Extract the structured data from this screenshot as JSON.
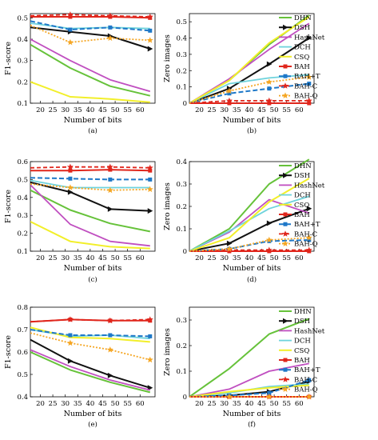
{
  "series_styles": [
    {
      "key": "DHN",
      "color": "#66c23a",
      "width": 2.0,
      "dash": "",
      "marker": "none"
    },
    {
      "key": "DSH",
      "color": "#111111",
      "width": 2.0,
      "dash": "",
      "marker": "arrow"
    },
    {
      "key": "HashNet",
      "color": "#c04fc0",
      "width": 1.8,
      "dash": "",
      "marker": "none"
    },
    {
      "key": "DCH",
      "color": "#6fd3dc",
      "width": 1.8,
      "dash": "",
      "marker": "none"
    },
    {
      "key": "CSQ",
      "color": "#f2ef2a",
      "width": 2.0,
      "dash": "",
      "marker": "none"
    },
    {
      "key": "BAH",
      "color": "#e0261c",
      "width": 2.0,
      "dash": "",
      "marker": "square"
    },
    {
      "key": "BAH+T",
      "color": "#1e78c8",
      "width": 2.0,
      "dash": "6 3",
      "marker": "square"
    },
    {
      "key": "BAH-C",
      "color": "#e0261c",
      "width": 1.8,
      "dash": "5 3",
      "marker": "star"
    },
    {
      "key": "BAH-Q",
      "color": "#f5a623",
      "width": 1.8,
      "dash": "2 2",
      "marker": "star"
    }
  ],
  "chart_data": [
    {
      "type": "line",
      "caption": "(a)",
      "xlabel": "Number of bits",
      "ylabel": "F1-score",
      "x": [
        16,
        32,
        48,
        64
      ],
      "xlim": [
        16,
        66
      ],
      "xticks": [
        20,
        25,
        30,
        35,
        40,
        45,
        50,
        55,
        60
      ],
      "ylim": [
        0.1,
        0.52
      ],
      "yticks": [
        0.1,
        0.2,
        0.3,
        0.4,
        0.5
      ],
      "ytick_labels": [
        "0.1",
        "0.2",
        "0.3",
        "0.4",
        "0.5"
      ],
      "legend": false,
      "series": [
        {
          "name": "DHN",
          "values": [
            0.375,
            0.265,
            0.18,
            0.135
          ]
        },
        {
          "name": "DSH",
          "values": [
            0.455,
            0.435,
            0.415,
            0.355
          ]
        },
        {
          "name": "HashNet",
          "values": [
            0.4,
            0.3,
            0.21,
            0.155
          ]
        },
        {
          "name": "DCH",
          "values": [
            0.475,
            0.45,
            0.455,
            0.45
          ]
        },
        {
          "name": "CSQ",
          "values": [
            0.2,
            0.13,
            0.12,
            0.105
          ]
        },
        {
          "name": "BAH",
          "values": [
            0.505,
            0.505,
            0.505,
            0.5
          ]
        },
        {
          "name": "BAH+T",
          "values": [
            0.485,
            0.445,
            0.455,
            0.44
          ]
        },
        {
          "name": "BAH-C",
          "values": [
            0.51,
            0.515,
            0.51,
            0.505
          ]
        },
        {
          "name": "BAH-Q",
          "values": [
            0.465,
            0.385,
            0.405,
            0.395
          ]
        }
      ]
    },
    {
      "type": "line",
      "caption": "(b)",
      "xlabel": "Number of bits",
      "ylabel": "Zero images",
      "x": [
        16,
        32,
        48,
        64
      ],
      "xlim": [
        16,
        66
      ],
      "xticks": [
        20,
        25,
        30,
        35,
        40,
        45,
        50,
        55,
        60
      ],
      "ylim": [
        0,
        0.55
      ],
      "yticks": [
        0,
        0.1,
        0.2,
        0.3,
        0.4,
        0.5
      ],
      "ytick_labels": [
        "0",
        "0.1",
        "0.2",
        "0.3",
        "0.4",
        "0.5"
      ],
      "legend": true,
      "series": [
        {
          "name": "DHN",
          "values": [
            0.0,
            0.14,
            0.36,
            0.54
          ]
        },
        {
          "name": "DSH",
          "values": [
            0.0,
            0.09,
            0.24,
            0.4
          ]
        },
        {
          "name": "HashNet",
          "values": [
            0.0,
            0.15,
            0.33,
            0.49
          ]
        },
        {
          "name": "DCH",
          "values": [
            0.0,
            0.12,
            0.155,
            0.175
          ]
        },
        {
          "name": "CSQ",
          "values": [
            0.0,
            0.14,
            0.37,
            0.53
          ]
        },
        {
          "name": "BAH",
          "values": [
            0.0,
            0.0,
            0.0,
            0.0
          ]
        },
        {
          "name": "BAH+T",
          "values": [
            0.0,
            0.06,
            0.09,
            0.12
          ]
        },
        {
          "name": "BAH-C",
          "values": [
            0.0,
            0.015,
            0.015,
            0.015
          ]
        },
        {
          "name": "BAH-Q",
          "values": [
            0.0,
            0.075,
            0.13,
            0.16
          ]
        }
      ]
    },
    {
      "type": "line",
      "caption": "(c)",
      "xlabel": "Number of bits",
      "ylabel": "F1-score",
      "x": [
        16,
        32,
        48,
        64
      ],
      "xlim": [
        16,
        66
      ],
      "xticks": [
        20,
        25,
        30,
        35,
        40,
        45,
        50,
        55,
        60
      ],
      "ylim": [
        0.1,
        0.6
      ],
      "yticks": [
        0.1,
        0.2,
        0.3,
        0.4,
        0.5,
        0.6
      ],
      "ytick_labels": [
        "0.1",
        "0.2",
        "0.3",
        "0.4",
        "0.5",
        "0.6"
      ],
      "legend": false,
      "series": [
        {
          "name": "DHN",
          "values": [
            0.44,
            0.33,
            0.255,
            0.21
          ]
        },
        {
          "name": "DSH",
          "values": [
            0.485,
            0.43,
            0.335,
            0.325
          ]
        },
        {
          "name": "HashNet",
          "values": [
            0.47,
            0.25,
            0.155,
            0.13
          ]
        },
        {
          "name": "DCH",
          "values": [
            0.495,
            0.455,
            0.455,
            0.455
          ]
        },
        {
          "name": "CSQ",
          "values": [
            0.265,
            0.155,
            0.125,
            0.115
          ]
        },
        {
          "name": "BAH",
          "values": [
            0.55,
            0.55,
            0.555,
            0.55
          ]
        },
        {
          "name": "BAH+T",
          "values": [
            0.51,
            0.505,
            0.5,
            0.5
          ]
        },
        {
          "name": "BAH-C",
          "values": [
            0.565,
            0.57,
            0.57,
            0.565
          ]
        },
        {
          "name": "BAH-Q",
          "values": [
            0.475,
            0.455,
            0.44,
            0.445
          ]
        }
      ]
    },
    {
      "type": "line",
      "caption": "(d)",
      "xlabel": "Number of bits",
      "ylabel": "Zero images",
      "x": [
        16,
        32,
        48,
        64
      ],
      "xlim": [
        16,
        66
      ],
      "xticks": [
        20,
        25,
        30,
        35,
        40,
        45,
        50,
        55,
        60
      ],
      "ylim": [
        0,
        0.4
      ],
      "yticks": [
        0,
        0.1,
        0.2,
        0.3,
        0.4
      ],
      "ytick_labels": [
        "0",
        "0.1",
        "0.2",
        "0.3",
        "0.4"
      ],
      "legend": true,
      "series": [
        {
          "name": "DHN",
          "values": [
            0.0,
            0.1,
            0.3,
            0.41
          ]
        },
        {
          "name": "DSH",
          "values": [
            0.0,
            0.035,
            0.125,
            0.19
          ]
        },
        {
          "name": "HashNet",
          "values": [
            0.0,
            0.085,
            0.23,
            0.17
          ]
        },
        {
          "name": "DCH",
          "values": [
            0.0,
            0.09,
            0.19,
            0.245
          ]
        },
        {
          "name": "CSQ",
          "values": [
            0.0,
            0.06,
            0.22,
            0.325
          ]
        },
        {
          "name": "BAH",
          "values": [
            0.0,
            0.0,
            0.0,
            0.0
          ]
        },
        {
          "name": "BAH+T",
          "values": [
            0.0,
            0.01,
            0.045,
            0.05
          ]
        },
        {
          "name": "BAH-C",
          "values": [
            0.0,
            0.005,
            0.005,
            0.005
          ]
        },
        {
          "name": "BAH-Q",
          "values": [
            0.0,
            0.01,
            0.05,
            0.06
          ]
        }
      ]
    },
    {
      "type": "line",
      "caption": "(e)",
      "xlabel": "Number of bits",
      "ylabel": "F1-score",
      "x": [
        16,
        32,
        48,
        64
      ],
      "xlim": [
        16,
        66
      ],
      "xticks": [
        20,
        25,
        30,
        35,
        40,
        45,
        50,
        55,
        60
      ],
      "ylim": [
        0.4,
        0.8
      ],
      "yticks": [
        0.4,
        0.5,
        0.6,
        0.7,
        0.8
      ],
      "ytick_labels": [
        "0.4",
        "0.5",
        "0.6",
        "0.7",
        "0.8"
      ],
      "legend": false,
      "series": [
        {
          "name": "DHN",
          "values": [
            0.6,
            0.52,
            0.465,
            0.42
          ]
        },
        {
          "name": "DSH",
          "values": [
            0.655,
            0.56,
            0.495,
            0.44
          ]
        },
        {
          "name": "HashNet",
          "values": [
            0.61,
            0.535,
            0.475,
            0.43
          ]
        },
        {
          "name": "DCH",
          "values": [
            0.7,
            0.67,
            0.675,
            0.66
          ]
        },
        {
          "name": "CSQ",
          "values": [
            0.71,
            0.665,
            0.66,
            0.645
          ]
        },
        {
          "name": "BAH",
          "values": [
            0.735,
            0.745,
            0.74,
            0.74
          ]
        },
        {
          "name": "BAH+T",
          "values": [
            0.7,
            0.675,
            0.675,
            0.67
          ]
        },
        {
          "name": "BAH-C",
          "values": [
            0.735,
            0.745,
            0.74,
            0.745
          ]
        },
        {
          "name": "BAH-Q",
          "values": [
            0.685,
            0.64,
            0.61,
            0.565
          ]
        }
      ]
    },
    {
      "type": "line",
      "caption": "(f)",
      "xlabel": "Number of bits",
      "ylabel": "Zero images",
      "x": [
        16,
        32,
        48,
        64
      ],
      "xlim": [
        16,
        66
      ],
      "xticks": [
        20,
        25,
        30,
        35,
        40,
        45,
        50,
        55,
        60
      ],
      "ylim": [
        0,
        0.35
      ],
      "yticks": [
        0,
        0.1,
        0.2,
        0.3
      ],
      "ytick_labels": [
        "0",
        "0.1",
        "0.2",
        "0.3"
      ],
      "legend": true,
      "series": [
        {
          "name": "DHN",
          "values": [
            0.0,
            0.11,
            0.245,
            0.305
          ]
        },
        {
          "name": "DSH",
          "values": [
            0.0,
            0.005,
            0.02,
            0.06
          ]
        },
        {
          "name": "HashNet",
          "values": [
            0.0,
            0.03,
            0.1,
            0.13
          ]
        },
        {
          "name": "DCH",
          "values": [
            0.0,
            0.015,
            0.04,
            0.05
          ]
        },
        {
          "name": "CSQ",
          "values": [
            0.0,
            0.02,
            0.035,
            0.045
          ]
        },
        {
          "name": "BAH",
          "values": [
            0.0,
            0.0,
            0.0,
            0.0
          ]
        },
        {
          "name": "BAH+T",
          "values": [
            0.0,
            0.005,
            0.015,
            0.065
          ]
        },
        {
          "name": "BAH-C",
          "values": [
            0.0,
            0.0,
            0.0,
            0.0
          ]
        },
        {
          "name": "BAH-Q",
          "values": [
            0.0,
            0.0,
            0.0,
            0.0
          ]
        }
      ]
    }
  ]
}
